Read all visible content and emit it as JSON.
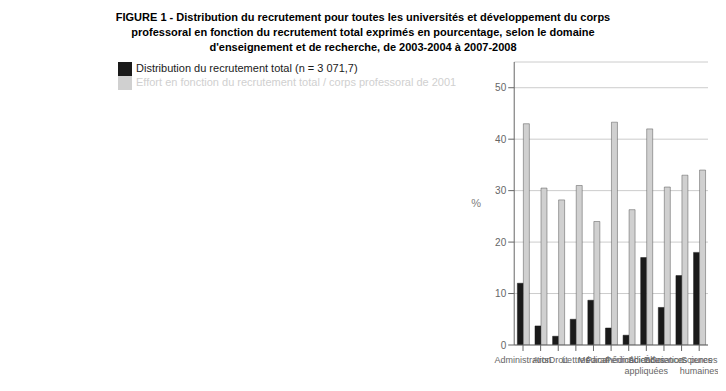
{
  "chart_data": {
    "type": "bar",
    "title": "FIGURE 1 - Distribution du recrutement pour toutes les universités et développement du corps\nprofessoral en fonction du recrutement total exprimés en pourcentage, selon le domaine\nd'enseignement et de recherche, de 2003-2004 à 2007-2008",
    "ylabel": "%",
    "categories": [
      "Administration",
      "Arts",
      "Droit",
      "Lettres",
      "Médical",
      "Paramédical",
      "Périmédical",
      "Sciences\nappliquées",
      "Éducation",
      "Sciences pures",
      "Sciences\nhumaines"
    ],
    "series": [
      {
        "name": "Distribution du recrutement total (n = 3 071,7)",
        "color": "#1a1a1a",
        "values": [
          12.0,
          3.7,
          1.7,
          5.0,
          8.7,
          3.3,
          1.9,
          17.0,
          7.3,
          13.5,
          18.0
        ]
      },
      {
        "name": "Effort en fonction du recrutement total / corps professoral de 2001",
        "color": "#d0d0d0",
        "values": [
          43.0,
          30.5,
          28.2,
          31.0,
          24.0,
          43.3,
          26.3,
          42.0,
          30.7,
          33.0,
          34.0
        ]
      }
    ],
    "ylim": [
      0,
      55
    ],
    "yticks": [
      0,
      10,
      20,
      30,
      40,
      50
    ],
    "grid": true,
    "legend": "upper left"
  }
}
